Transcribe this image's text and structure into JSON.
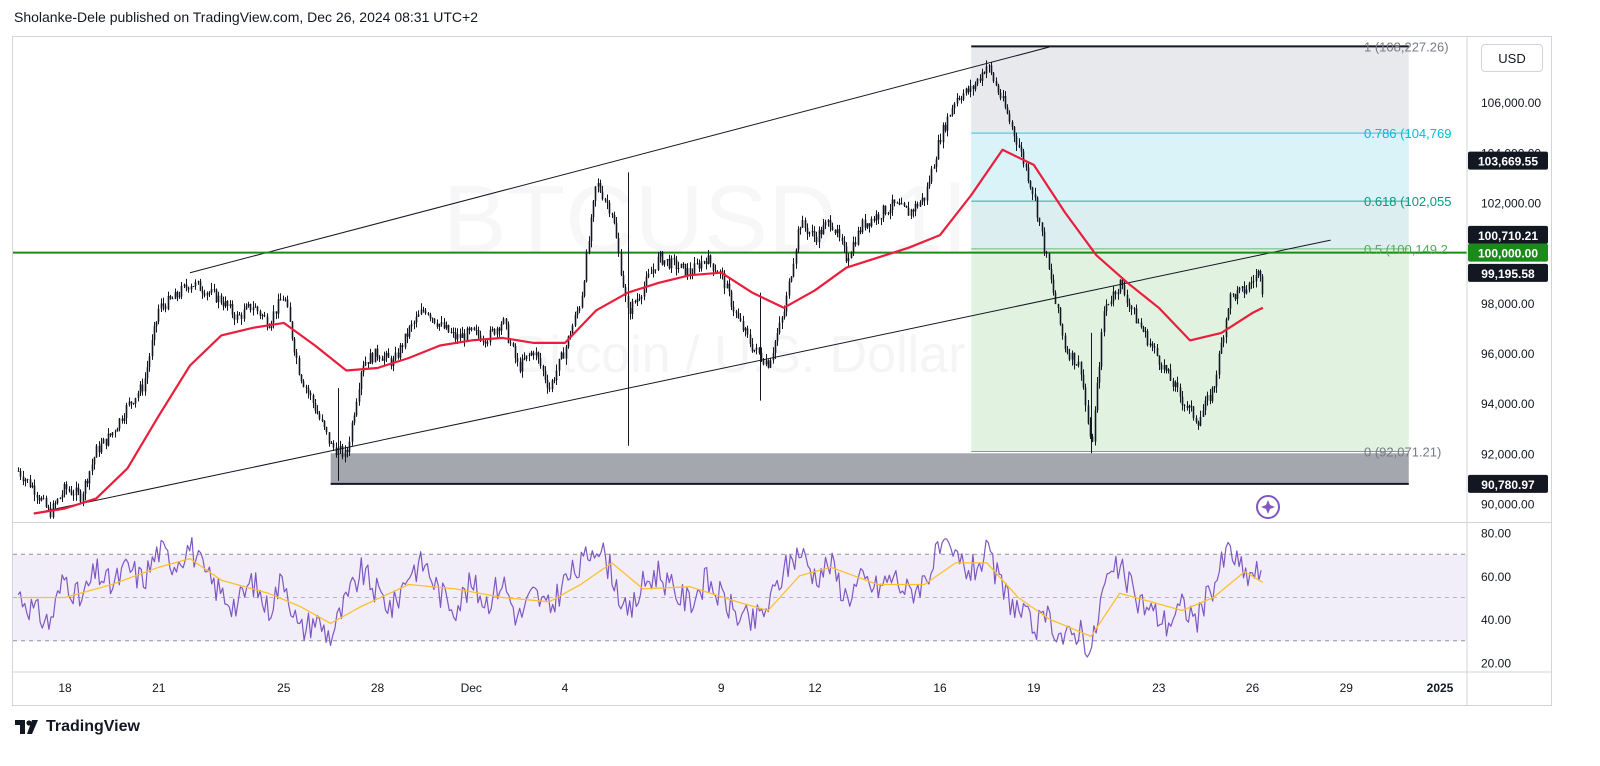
{
  "header": {
    "text": "Sholanke-Dele published on TradingView.com, Dec 26, 2024 08:31 UTC+2"
  },
  "currency_button": {
    "label": "USD"
  },
  "footer": {
    "brand": "TradingView"
  },
  "watermark": {
    "symbol": "BTCUSD, 1h",
    "name": "Bitcoin / U.S. Dollar"
  },
  "colors": {
    "ma": "#e91e3c",
    "rsi": "#7e57c2",
    "rsi_ma": "#fbc02d",
    "green_level": "#1b8a1b",
    "fib_786_text": "#00bcd4",
    "fib_618_text": "#089981",
    "fib_05_text": "#4caf50"
  },
  "chart_data": {
    "type": "candlestick",
    "timeframe": "1h",
    "x_ticks": [
      "18",
      "21",
      "25",
      "28",
      "Dec",
      "4",
      "9",
      "12",
      "16",
      "19",
      "23",
      "26",
      "29",
      "2025"
    ],
    "x_tick_dates": [
      "2024-11-18",
      "2024-11-21",
      "2024-11-25",
      "2024-11-28",
      "2024-12-01",
      "2024-12-04",
      "2024-12-09",
      "2024-12-12",
      "2024-12-16",
      "2024-12-19",
      "2024-12-23",
      "2024-12-26",
      "2024-12-29",
      "2025-01-01"
    ],
    "y_ticks": [
      "106,000.00",
      "104,000.00",
      "102,000.00",
      "98,000.00",
      "96,000.00",
      "94,000.00",
      "92,000.00",
      "90,000.00"
    ],
    "y_tick_values": [
      106000,
      104000,
      102000,
      98000,
      96000,
      94000,
      92000,
      90000
    ],
    "y_range": [
      89300,
      108600
    ],
    "price_path": [
      [
        "2024-11-16T12:00",
        91300
      ],
      [
        "2024-11-17T00:00",
        90600
      ],
      [
        "2024-11-17T12:00",
        89600
      ],
      [
        "2024-11-18T00:00",
        90600
      ],
      [
        "2024-11-18T12:00",
        90300
      ],
      [
        "2024-11-19T00:00",
        92100
      ],
      [
        "2024-11-19T12:00",
        92800
      ],
      [
        "2024-11-20T00:00",
        93900
      ],
      [
        "2024-11-20T12:00",
        94700
      ],
      [
        "2024-11-21T00:00",
        97800
      ],
      [
        "2024-11-21T12:00",
        98200
      ],
      [
        "2024-11-22T00:00",
        98800
      ],
      [
        "2024-11-22T12:00",
        98500
      ],
      [
        "2024-11-23T00:00",
        98100
      ],
      [
        "2024-11-23T12:00",
        97400
      ],
      [
        "2024-11-24T00:00",
        97900
      ],
      [
        "2024-11-24T12:00",
        97200
      ],
      [
        "2024-11-25T00:00",
        98300
      ],
      [
        "2024-11-25T12:00",
        95200
      ],
      [
        "2024-11-26T00:00",
        93800
      ],
      [
        "2024-11-26T12:00",
        92300
      ],
      [
        "2024-11-27T00:00",
        91900
      ],
      [
        "2024-11-27T12:00",
        95600
      ],
      [
        "2024-11-28T00:00",
        96000
      ],
      [
        "2024-11-28T12:00",
        95600
      ],
      [
        "2024-11-29T00:00",
        96900
      ],
      [
        "2024-11-29T12:00",
        97800
      ],
      [
        "2024-11-30T00:00",
        97100
      ],
      [
        "2024-11-30T12:00",
        96600
      ],
      [
        "2024-12-01T00:00",
        96800
      ],
      [
        "2024-12-01T12:00",
        96600
      ],
      [
        "2024-12-02T00:00",
        97300
      ],
      [
        "2024-12-02T12:00",
        95400
      ],
      [
        "2024-12-03T00:00",
        96100
      ],
      [
        "2024-12-03T12:00",
        94600
      ],
      [
        "2024-12-04T00:00",
        96200
      ],
      [
        "2024-12-04T12:00",
        98100
      ],
      [
        "2024-12-05T00:00",
        102800
      ],
      [
        "2024-12-05T12:00",
        101600
      ],
      [
        "2024-12-06T00:00",
        97600
      ],
      [
        "2024-12-06T12:00",
        98600
      ],
      [
        "2024-12-07T00:00",
        99800
      ],
      [
        "2024-12-07T12:00",
        99500
      ],
      [
        "2024-12-08T00:00",
        99200
      ],
      [
        "2024-12-08T12:00",
        99800
      ],
      [
        "2024-12-09T00:00",
        99100
      ],
      [
        "2024-12-09T12:00",
        97400
      ],
      [
        "2024-12-10T00:00",
        96200
      ],
      [
        "2024-12-10T12:00",
        95600
      ],
      [
        "2024-12-11T00:00",
        97600
      ],
      [
        "2024-12-11T12:00",
        101200
      ],
      [
        "2024-12-12T00:00",
        100600
      ],
      [
        "2024-12-12T12:00",
        101300
      ],
      [
        "2024-12-13T00:00",
        99800
      ],
      [
        "2024-12-13T12:00",
        101100
      ],
      [
        "2024-12-14T00:00",
        101500
      ],
      [
        "2024-12-14T12:00",
        101900
      ],
      [
        "2024-12-15T00:00",
        101600
      ],
      [
        "2024-12-15T12:00",
        102200
      ],
      [
        "2024-12-16T00:00",
        104600
      ],
      [
        "2024-12-16T12:00",
        106200
      ],
      [
        "2024-12-17T00:00",
        106500
      ],
      [
        "2024-12-17T12:00",
        107500
      ],
      [
        "2024-12-18T00:00",
        106000
      ],
      [
        "2024-12-18T12:00",
        104300
      ],
      [
        "2024-12-19T00:00",
        102300
      ],
      [
        "2024-12-19T12:00",
        99100
      ],
      [
        "2024-12-20T00:00",
        96200
      ],
      [
        "2024-12-20T12:00",
        95400
      ],
      [
        "2024-12-20T20:00",
        92100
      ],
      [
        "2024-12-21T06:00",
        97800
      ],
      [
        "2024-12-21T18:00",
        98800
      ],
      [
        "2024-12-22T06:00",
        97400
      ],
      [
        "2024-12-22T18:00",
        96300
      ],
      [
        "2024-12-23T06:00",
        95200
      ],
      [
        "2024-12-23T18:00",
        94100
      ],
      [
        "2024-12-24T06:00",
        93300
      ],
      [
        "2024-12-24T18:00",
        94600
      ],
      [
        "2024-12-25T06:00",
        98200
      ],
      [
        "2024-12-25T18:00",
        98500
      ],
      [
        "2024-12-26T06:00",
        99300
      ],
      [
        "2024-12-26T08:00",
        98400
      ]
    ],
    "ma_path": [
      [
        "2024-11-17T00:00",
        89600
      ],
      [
        "2024-11-18T00:00",
        89800
      ],
      [
        "2024-11-19T00:00",
        90200
      ],
      [
        "2024-11-20T00:00",
        91400
      ],
      [
        "2024-11-21T00:00",
        93500
      ],
      [
        "2024-11-22T00:00",
        95500
      ],
      [
        "2024-11-23T00:00",
        96700
      ],
      [
        "2024-11-24T00:00",
        97000
      ],
      [
        "2024-11-25T00:00",
        97200
      ],
      [
        "2024-11-26T00:00",
        96300
      ],
      [
        "2024-11-27T00:00",
        95300
      ],
      [
        "2024-11-28T00:00",
        95400
      ],
      [
        "2024-11-29T00:00",
        95800
      ],
      [
        "2024-11-30T00:00",
        96300
      ],
      [
        "2024-12-01T00:00",
        96500
      ],
      [
        "2024-12-02T00:00",
        96600
      ],
      [
        "2024-12-03T00:00",
        96400
      ],
      [
        "2024-12-04T00:00",
        96400
      ],
      [
        "2024-12-05T00:00",
        97700
      ],
      [
        "2024-12-06T00:00",
        98400
      ],
      [
        "2024-12-07T00:00",
        98800
      ],
      [
        "2024-12-08T00:00",
        99100
      ],
      [
        "2024-12-09T00:00",
        99200
      ],
      [
        "2024-12-10T00:00",
        98400
      ],
      [
        "2024-12-11T00:00",
        97800
      ],
      [
        "2024-12-12T00:00",
        98500
      ],
      [
        "2024-12-13T00:00",
        99400
      ],
      [
        "2024-12-14T00:00",
        99800
      ],
      [
        "2024-12-15T00:00",
        100200
      ],
      [
        "2024-12-16T00:00",
        100700
      ],
      [
        "2024-12-17T00:00",
        102300
      ],
      [
        "2024-12-18T00:00",
        104100
      ],
      [
        "2024-12-19T00:00",
        103500
      ],
      [
        "2024-12-20T00:00",
        101600
      ],
      [
        "2024-12-21T00:00",
        99900
      ],
      [
        "2024-12-22T00:00",
        98800
      ],
      [
        "2024-12-23T00:00",
        97800
      ],
      [
        "2024-12-24T00:00",
        96500
      ],
      [
        "2024-12-25T00:00",
        96800
      ],
      [
        "2024-12-26T00:00",
        97600
      ],
      [
        "2024-12-26T08:00",
        97800
      ]
    ],
    "ma_label": "",
    "channel_upper": [
      [
        "2024-11-22T00:00",
        99200
      ],
      [
        "2024-12-19T12:00",
        108200
      ]
    ],
    "channel_lower": [
      [
        "2024-11-17T00:00",
        89600
      ],
      [
        "2024-12-28T12:00",
        100500
      ]
    ],
    "horizontal_level": 100000,
    "fib_retracement": {
      "start": "2024-12-17T00:00",
      "end": "2024-12-31T00:00",
      "levels": [
        {
          "ratio": "1",
          "price": 108227.26,
          "label": "1 (108,227.26)",
          "fill": "#e8e9ed"
        },
        {
          "ratio": "0.786",
          "price": 104769,
          "label": "0.786 (104,769",
          "fill": "#d9f3f9"
        },
        {
          "ratio": "0.618",
          "price": 102055,
          "label": "0.618 (102,055",
          "fill": "#dceef0"
        },
        {
          "ratio": "0.5",
          "price": 100149,
          "label": "0.5 (100,149.2",
          "fill": "#e1f2e1"
        },
        {
          "ratio": "0",
          "price": 92071.21,
          "label": "0 (92,071.21)",
          "fill": ""
        }
      ]
    },
    "support_zone": {
      "start": "2024-11-26T12:00",
      "end": "2024-12-31T00:00",
      "top": 92000,
      "bottom": 90780.97
    },
    "top_line": {
      "start": "2024-12-17T00:00",
      "end": "2024-12-31T00:00",
      "price": 108227.26
    },
    "price_tags": [
      {
        "price": 103669.55,
        "label": "103,669.55",
        "bg": "#131722",
        "fg": "#ffffff"
      },
      {
        "price": 100710.21,
        "label": "100,710.21",
        "bg": "#131722",
        "fg": "#ffffff"
      },
      {
        "price": 100000.0,
        "label": "100,000.00",
        "bg": "#1b8a1b",
        "fg": "#ffffff"
      },
      {
        "price": 99195.58,
        "label": "99,195.58",
        "bg": "#131722",
        "fg": "#ffffff"
      },
      {
        "price": 90780.97,
        "label": "90,780.97",
        "bg": "#131722",
        "fg": "#ffffff"
      }
    ],
    "rsi": {
      "y_ticks": [
        "80.00",
        "60.00",
        "40.00",
        "20.00"
      ],
      "y_tick_values": [
        80,
        60,
        40,
        20
      ],
      "y_range": [
        16,
        84
      ],
      "band": [
        30,
        70
      ],
      "midline": 50,
      "rsi_path": [
        [
          "2024-11-16T12:00",
          52
        ],
        [
          "2024-11-17T00:00",
          44
        ],
        [
          "2024-11-17T12:00",
          38
        ],
        [
          "2024-11-18T00:00",
          60
        ],
        [
          "2024-11-18T12:00",
          48
        ],
        [
          "2024-11-19T00:00",
          62
        ],
        [
          "2024-11-19T12:00",
          55
        ],
        [
          "2024-11-20T00:00",
          64
        ],
        [
          "2024-11-20T12:00",
          58
        ],
        [
          "2024-11-21T00:00",
          72
        ],
        [
          "2024-11-21T12:00",
          66
        ],
        [
          "2024-11-22T00:00",
          74
        ],
        [
          "2024-11-22T12:00",
          60
        ],
        [
          "2024-11-23T00:00",
          52
        ],
        [
          "2024-11-23T12:00",
          46
        ],
        [
          "2024-11-24T00:00",
          58
        ],
        [
          "2024-11-24T12:00",
          44
        ],
        [
          "2024-11-25T00:00",
          60
        ],
        [
          "2024-11-25T12:00",
          34
        ],
        [
          "2024-11-26T00:00",
          40
        ],
        [
          "2024-11-26T12:00",
          32
        ],
        [
          "2024-11-27T00:00",
          48
        ],
        [
          "2024-11-27T12:00",
          62
        ],
        [
          "2024-11-28T00:00",
          52
        ],
        [
          "2024-11-28T12:00",
          45
        ],
        [
          "2024-11-29T00:00",
          62
        ],
        [
          "2024-11-29T12:00",
          66
        ],
        [
          "2024-11-30T00:00",
          52
        ],
        [
          "2024-11-30T12:00",
          46
        ],
        [
          "2024-12-01T00:00",
          56
        ],
        [
          "2024-12-01T12:00",
          48
        ],
        [
          "2024-12-02T00:00",
          58
        ],
        [
          "2024-12-02T12:00",
          40
        ],
        [
          "2024-12-03T00:00",
          52
        ],
        [
          "2024-12-03T12:00",
          44
        ],
        [
          "2024-12-04T00:00",
          58
        ],
        [
          "2024-12-04T12:00",
          64
        ],
        [
          "2024-12-05T00:00",
          76
        ],
        [
          "2024-12-05T12:00",
          62
        ],
        [
          "2024-12-06T00:00",
          40
        ],
        [
          "2024-12-06T12:00",
          56
        ],
        [
          "2024-12-07T00:00",
          62
        ],
        [
          "2024-12-07T12:00",
          52
        ],
        [
          "2024-12-08T00:00",
          48
        ],
        [
          "2024-12-08T12:00",
          58
        ],
        [
          "2024-12-09T00:00",
          50
        ],
        [
          "2024-12-09T12:00",
          42
        ],
        [
          "2024-12-10T00:00",
          38
        ],
        [
          "2024-12-10T12:00",
          46
        ],
        [
          "2024-12-11T00:00",
          62
        ],
        [
          "2024-12-11T12:00",
          72
        ],
        [
          "2024-12-12T00:00",
          60
        ],
        [
          "2024-12-12T12:00",
          66
        ],
        [
          "2024-12-13T00:00",
          50
        ],
        [
          "2024-12-13T12:00",
          58
        ],
        [
          "2024-12-14T00:00",
          54
        ],
        [
          "2024-12-14T12:00",
          60
        ],
        [
          "2024-12-15T00:00",
          52
        ],
        [
          "2024-12-15T12:00",
          58
        ],
        [
          "2024-12-16T00:00",
          72
        ],
        [
          "2024-12-16T12:00",
          68
        ],
        [
          "2024-12-17T00:00",
          62
        ],
        [
          "2024-12-17T12:00",
          70
        ],
        [
          "2024-12-18T00:00",
          54
        ],
        [
          "2024-12-18T12:00",
          44
        ],
        [
          "2024-12-19T00:00",
          36
        ],
        [
          "2024-12-19T12:00",
          40
        ],
        [
          "2024-12-20T00:00",
          30
        ],
        [
          "2024-12-20T12:00",
          36
        ],
        [
          "2024-12-20T20:00",
          24
        ],
        [
          "2024-12-21T06:00",
          56
        ],
        [
          "2024-12-21T18:00",
          64
        ],
        [
          "2024-12-22T06:00",
          50
        ],
        [
          "2024-12-22T18:00",
          44
        ],
        [
          "2024-12-23T06:00",
          38
        ],
        [
          "2024-12-23T18:00",
          46
        ],
        [
          "2024-12-24T06:00",
          40
        ],
        [
          "2024-12-24T18:00",
          56
        ],
        [
          "2024-12-25T06:00",
          73
        ],
        [
          "2024-12-25T18:00",
          60
        ],
        [
          "2024-12-26T06:00",
          62
        ],
        [
          "2024-12-26T08:00",
          46
        ]
      ],
      "rsi_ma_path": [
        [
          "2024-11-16T12:00",
          50
        ],
        [
          "2024-11-18T00:00",
          50
        ],
        [
          "2024-11-19T12:00",
          56
        ],
        [
          "2024-11-21T00:00",
          64
        ],
        [
          "2024-11-22T00:00",
          68
        ],
        [
          "2024-11-23T00:00",
          58
        ],
        [
          "2024-11-24T12:00",
          52
        ],
        [
          "2024-11-25T12:00",
          46
        ],
        [
          "2024-11-26T12:00",
          38
        ],
        [
          "2024-11-27T12:00",
          46
        ],
        [
          "2024-11-29T00:00",
          56
        ],
        [
          "2024-11-30T12:00",
          54
        ],
        [
          "2024-12-02T00:00",
          50
        ],
        [
          "2024-12-03T12:00",
          48
        ],
        [
          "2024-12-04T12:00",
          56
        ],
        [
          "2024-12-05T12:00",
          66
        ],
        [
          "2024-12-06T12:00",
          54
        ],
        [
          "2024-12-08T00:00",
          55
        ],
        [
          "2024-12-09T12:00",
          48
        ],
        [
          "2024-12-10T12:00",
          44
        ],
        [
          "2024-12-11T12:00",
          60
        ],
        [
          "2024-12-12T12:00",
          64
        ],
        [
          "2024-12-14T00:00",
          56
        ],
        [
          "2024-12-15T12:00",
          56
        ],
        [
          "2024-12-16T12:00",
          66
        ],
        [
          "2024-12-17T12:00",
          66
        ],
        [
          "2024-12-18T12:00",
          50
        ],
        [
          "2024-12-19T12:00",
          40
        ],
        [
          "2024-12-20T20:00",
          32
        ],
        [
          "2024-12-21T18:00",
          52
        ],
        [
          "2024-12-22T18:00",
          48
        ],
        [
          "2024-12-23T18:00",
          44
        ],
        [
          "2024-12-24T18:00",
          50
        ],
        [
          "2024-12-25T18:00",
          62
        ],
        [
          "2024-12-26T08:00",
          57
        ]
      ]
    }
  }
}
